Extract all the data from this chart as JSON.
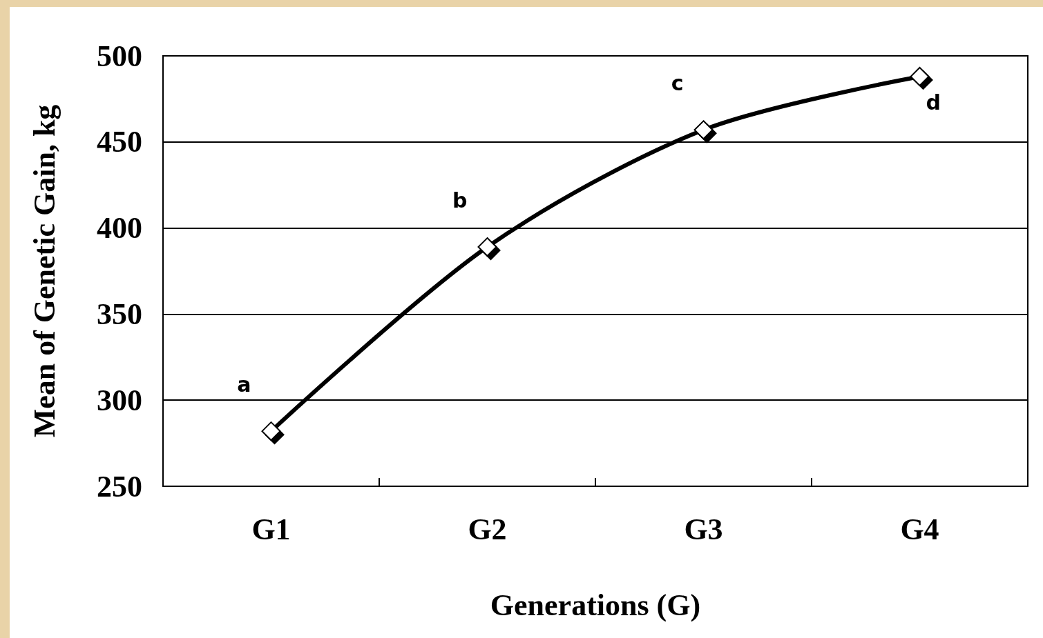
{
  "chart_data": {
    "type": "line",
    "xlabel": "Generations (G)",
    "ylabel": "Mean of Genetic Gain, kg",
    "categories": [
      "G1",
      "G2",
      "G3",
      "G4"
    ],
    "series": [
      {
        "color": "#000000",
        "values": [
          282,
          389,
          457,
          488
        ],
        "value_labels": [
          "a",
          "b",
          "c",
          "d"
        ]
      }
    ],
    "ylim": [
      250,
      500
    ],
    "yticks": [
      250,
      300,
      350,
      400,
      450,
      500
    ],
    "grid": "y",
    "marker": "diamond",
    "line_style": "solid"
  }
}
